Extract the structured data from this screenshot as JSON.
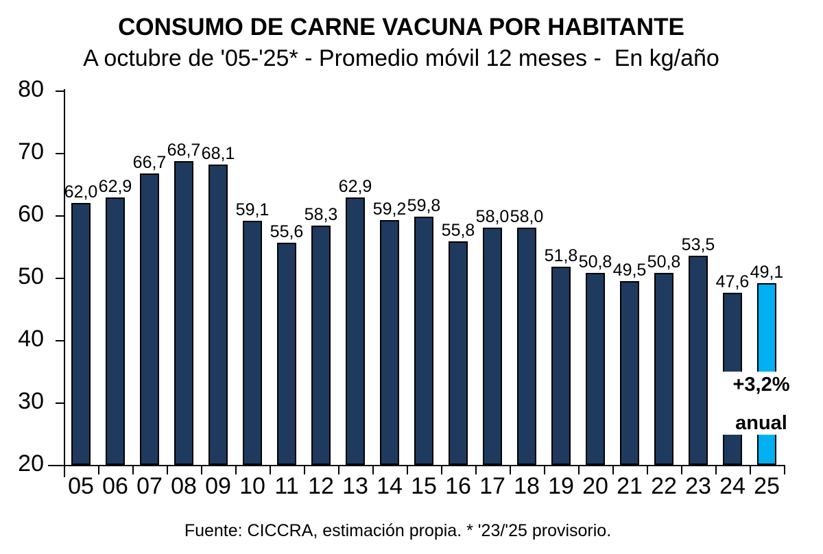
{
  "title": "CONSUMO DE CARNE VACUNA POR HABITANTE",
  "subtitle": "A octubre de '05-'25* - Promedio móvil 12 meses -  En kg/año",
  "footer": "Fuente: CICCRA, estimación propia. * '23/'25 provisorio.",
  "annotation": {
    "line1": "+3,2%",
    "line2": "anual"
  },
  "colors": {
    "bar": "#1f3a5f",
    "bar_highlight": "#00b0f0",
    "bar_border": "#000000",
    "text": "#000000"
  },
  "chart_data": {
    "type": "bar",
    "title": "CONSUMO DE CARNE VACUNA POR HABITANTE",
    "subtitle": "A octubre de '05-'25* - Promedio móvil 12 meses - En kg/año",
    "xlabel": "",
    "ylabel": "kg/año",
    "ylim": [
      20,
      80
    ],
    "yticks": [
      20,
      30,
      40,
      50,
      60,
      70,
      80
    ],
    "grid": false,
    "legend": "none",
    "categories": [
      "05",
      "06",
      "07",
      "08",
      "09",
      "10",
      "11",
      "12",
      "13",
      "14",
      "15",
      "16",
      "17",
      "18",
      "19",
      "20",
      "21",
      "22",
      "23",
      "24",
      "25"
    ],
    "values": [
      62.0,
      62.9,
      66.7,
      68.7,
      68.1,
      59.1,
      55.6,
      58.3,
      62.9,
      59.2,
      59.8,
      55.8,
      58.0,
      58.0,
      51.8,
      50.8,
      49.5,
      50.8,
      53.5,
      47.6,
      49.1
    ],
    "value_labels": [
      "62,0",
      "62,9",
      "66,7",
      "68,7",
      "68,1",
      "59,1",
      "55,6",
      "58,3",
      "62,9",
      "59,2",
      "59,8",
      "55,8",
      "58,0",
      "58,0",
      "51,8",
      "50,8",
      "49,5",
      "50,8",
      "53,5",
      "47,6",
      "49,1"
    ],
    "highlight_index": 20,
    "annotation": "+3,2% anual"
  }
}
